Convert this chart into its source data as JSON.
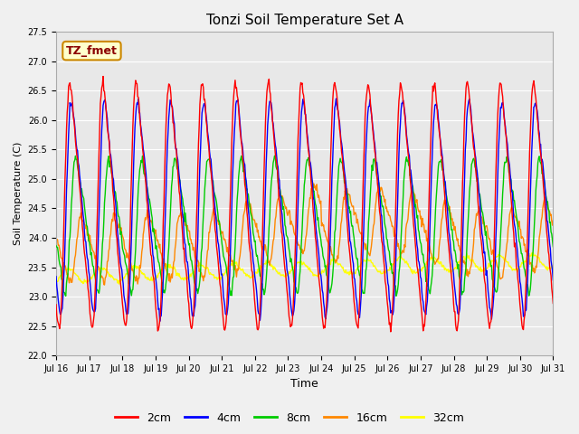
{
  "title": "Tonzi Soil Temperature Set A",
  "xlabel": "Time",
  "ylabel": "Soil Temperature (C)",
  "ylim": [
    22.0,
    27.5
  ],
  "yticks": [
    22.0,
    22.5,
    23.0,
    23.5,
    24.0,
    24.5,
    25.0,
    25.5,
    26.0,
    26.5,
    27.0,
    27.5
  ],
  "colors": {
    "2cm": "#ff0000",
    "4cm": "#0000ff",
    "8cm": "#00cc00",
    "16cm": "#ff8800",
    "32cm": "#ffff00"
  },
  "legend_label": "TZ_fmet",
  "legend_box_facecolor": "#ffffcc",
  "legend_box_edgecolor": "#cc8800",
  "fig_facecolor": "#f0f0f0",
  "ax_facecolor": "#e8e8e8",
  "grid_color": "#ffffff",
  "n_points": 720,
  "days": 15,
  "start_day": 16
}
